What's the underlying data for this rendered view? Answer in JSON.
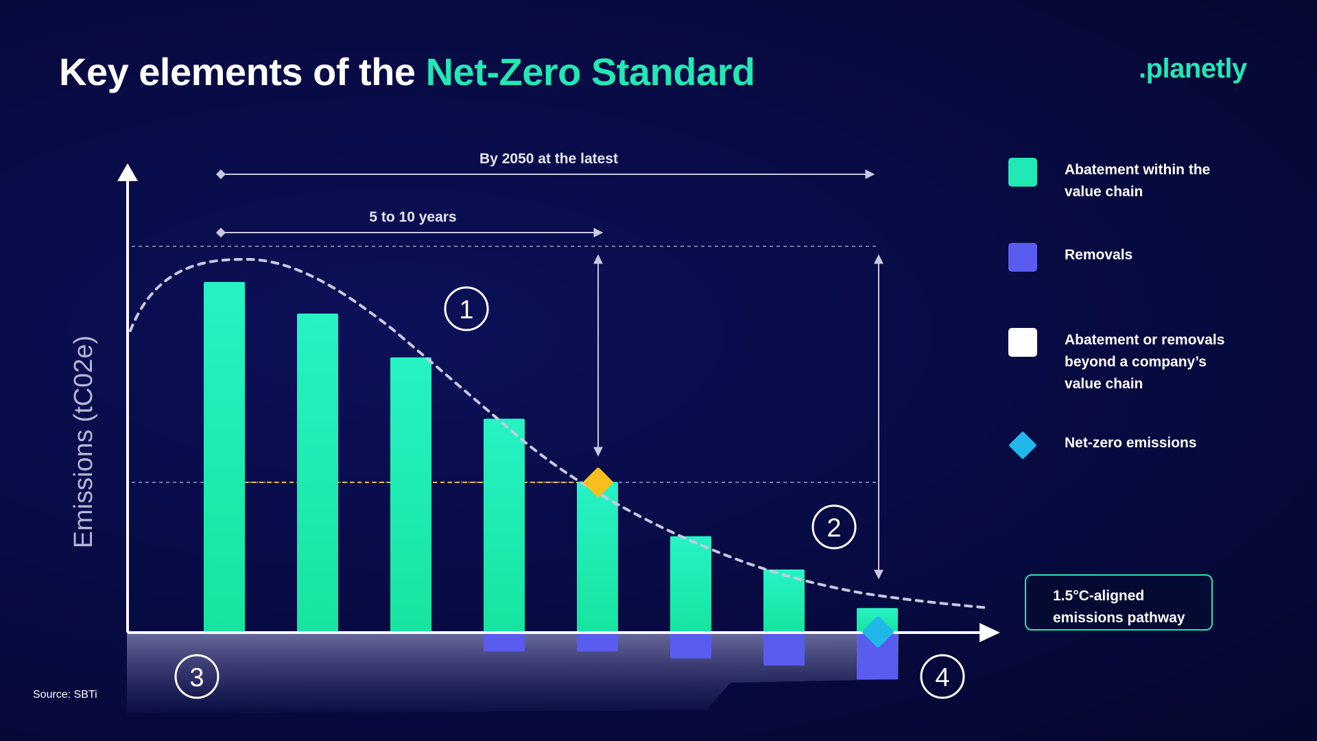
{
  "header": {
    "title_plain": "Key elements of the",
    "title_accent": "Net-Zero Standard",
    "logo": ".planetly"
  },
  "colors": {
    "abatement": "#22e8b4",
    "removals": "#5a5cf0",
    "beyond": "#ffffff",
    "net_zero": "#1fb8e8",
    "baseline_marker": "#f6be1e"
  },
  "chart_data": {
    "type": "bar",
    "ylabel": "Emissions (tC02e)",
    "series": [
      {
        "name": "Abatement within the value chain",
        "values": [
          100,
          91,
          78.5,
          61,
          43,
          27.5,
          18,
          7
        ]
      },
      {
        "name": "Removals",
        "values": [
          0,
          0,
          0,
          -5,
          -5,
          -7,
          -9,
          -13
        ]
      }
    ],
    "pathway_curve": "1.5°C-aligned emissions pathway",
    "annotations": {
      "near_term_span": "5 to 10 years",
      "long_term_span": "By 2050 at the latest",
      "markers": [
        "1",
        "2",
        "3",
        "4"
      ]
    }
  },
  "legend": {
    "items": [
      {
        "label": "Abatement within the value chain",
        "swatch": "abatement"
      },
      {
        "label": "Removals",
        "swatch": "removals"
      },
      {
        "label": "Abatement or removals beyond a company’s value chain",
        "swatch": "beyond"
      },
      {
        "label": "Net-zero emissions",
        "swatch": "net_zero"
      }
    ]
  },
  "pathway_box": {
    "line1": "1.5°C-aligned",
    "line2": "emissions pathway"
  },
  "source": "Source: SBTi"
}
